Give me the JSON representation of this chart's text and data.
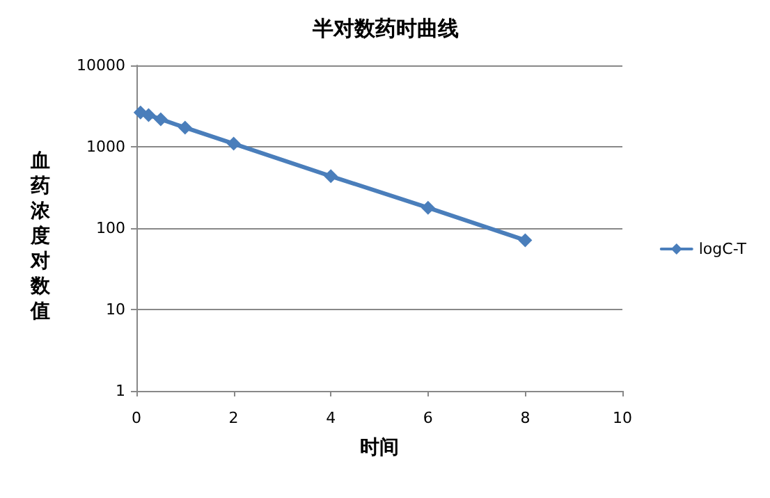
{
  "chart_data": {
    "type": "line",
    "title": "半对数药时曲线",
    "xlabel": "时间",
    "ylabel": "血药浓度对数值",
    "x": [
      0.083,
      0.25,
      0.5,
      1,
      2,
      4,
      6,
      8
    ],
    "series": [
      {
        "name": "logC-T",
        "color": "#4a7ebb",
        "values": [
          2640,
          2450,
          2180,
          1720,
          1090,
          435,
          178,
          71
        ]
      }
    ],
    "xlim": [
      0,
      10
    ],
    "xticks": [
      0,
      2,
      4,
      6,
      8,
      10
    ],
    "ylim": [
      1,
      10000
    ],
    "yticks": [
      1,
      10,
      100,
      1000,
      10000
    ],
    "log": "y",
    "grid": "y",
    "legend": "right",
    "marker": "diamond",
    "line_style": "solid"
  }
}
